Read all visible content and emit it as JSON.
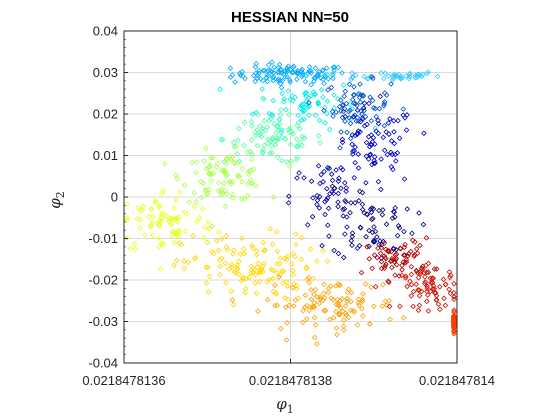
{
  "chart_data": {
    "type": "scatter",
    "title": "HESSIAN NN=50",
    "xlabel": {
      "symbol": "φ",
      "subscript": "1"
    },
    "ylabel": {
      "symbol": "φ",
      "subscript": "2"
    },
    "marker": "diamond",
    "colormap": "jet",
    "grid": true,
    "xlim": [
      0.0218478136,
      0.021847814
    ],
    "ylim": [
      -0.04,
      0.04
    ],
    "xticks": [
      0.0218478136,
      0.0218478138,
      0.021847814
    ],
    "xtick_labels": [
      "0.0218478136",
      "0.0218478138",
      "0.021847814"
    ],
    "yticks": [
      -0.04,
      -0.03,
      -0.02,
      -0.01,
      0,
      0.01,
      0.02,
      0.03,
      0.04
    ],
    "ytick_labels": [
      "-0.04",
      "-0.03",
      "-0.02",
      "-0.01",
      "0",
      "0.01",
      "0.02",
      "0.03",
      "0.04"
    ],
    "clusters": [
      {
        "color": "#00aaff",
        "x": 0.0218478138,
        "y": 0.0295,
        "sx": 3.5e-11,
        "sy": 0.0012,
        "n": 110
      },
      {
        "color": "#33ccff",
        "x": 0.02184781392,
        "y": 0.0292,
        "sx": 3e-11,
        "sy": 0.0006,
        "n": 40
      },
      {
        "color": "#00eeee",
        "x": 0.02184781382,
        "y": 0.0225,
        "sx": 3e-11,
        "sy": 0.003,
        "n": 70
      },
      {
        "color": "#0050d0",
        "x": 0.02184781388,
        "y": 0.022,
        "sx": 2e-11,
        "sy": 0.003,
        "n": 70
      },
      {
        "color": "#50ffa8",
        "x": 0.02184781378,
        "y": 0.014,
        "sx": 3e-11,
        "sy": 0.003,
        "n": 90
      },
      {
        "color": "#0000c8",
        "x": 0.0218478139,
        "y": 0.012,
        "sx": 2.5e-11,
        "sy": 0.005,
        "n": 80
      },
      {
        "color": "#a8ff50",
        "x": 0.02184781372,
        "y": 0.005,
        "sx": 2.5e-11,
        "sy": 0.003,
        "n": 90
      },
      {
        "color": "#00009c",
        "x": 0.02184781385,
        "y": 0.0,
        "sx": 2.5e-11,
        "sy": 0.004,
        "n": 60
      },
      {
        "color": "#e8ff18",
        "x": 0.02184781365,
        "y": -0.006,
        "sx": 3e-11,
        "sy": 0.004,
        "n": 80
      },
      {
        "color": "#000080",
        "x": 0.0218478139,
        "y": -0.007,
        "sx": 2.5e-11,
        "sy": 0.004,
        "n": 60
      },
      {
        "color": "#ffd700",
        "x": 0.02184781375,
        "y": -0.017,
        "sx": 4e-11,
        "sy": 0.004,
        "n": 130
      },
      {
        "color": "#b00000",
        "x": 0.02184781393,
        "y": -0.015,
        "sx": 2e-11,
        "sy": 0.0025,
        "n": 70
      },
      {
        "color": "#ffa000",
        "x": 0.02184781385,
        "y": -0.026,
        "sx": 4e-11,
        "sy": 0.003,
        "n": 110
      },
      {
        "color": "#d01000",
        "x": 0.02184781397,
        "y": -0.022,
        "sx": 1.8e-11,
        "sy": 0.0025,
        "n": 70
      },
      {
        "color": "#ff3c00",
        "x": 0.02184781408,
        "y": -0.03,
        "sx": 3e-11,
        "sy": 0.001,
        "n": 130
      }
    ]
  }
}
